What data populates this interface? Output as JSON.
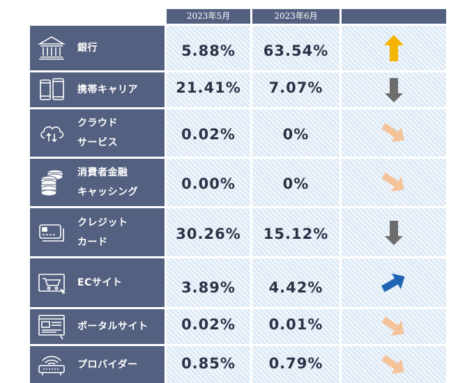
{
  "header": {
    "col1": "2023年5月",
    "col2": "2023年6月"
  },
  "rows": [
    {
      "icon": "bank-icon",
      "label_lines": [
        "銀行"
      ],
      "may": "5.88%",
      "june": "63.54%",
      "trend": "up",
      "trend_icon": "arrow-up-icon",
      "trend_color": "#f5b400"
    },
    {
      "icon": "mobile-phones-icon",
      "label_lines": [
        "携帯キャリア"
      ],
      "may": "21.41%",
      "june": "7.07%",
      "trend": "down",
      "trend_icon": "arrow-down-icon",
      "trend_color": "#6d6d6d"
    },
    {
      "icon": "cloud-service-icon",
      "label_lines": [
        "クラウド",
        "サービス"
      ],
      "may": "0.02%",
      "june": "0%",
      "trend": "slight-down",
      "trend_icon": "arrow-down-right-icon",
      "trend_color": "#f4c39a"
    },
    {
      "icon": "coins-icon",
      "label_lines": [
        "消費者金融",
        "キャッシング"
      ],
      "may": "0.00%",
      "june": "0%",
      "trend": "slight-down",
      "trend_icon": "arrow-down-right-icon",
      "trend_color": "#f4c39a"
    },
    {
      "icon": "credit-card-icon",
      "label_lines": [
        "クレジット",
        "カード"
      ],
      "may": "30.26%",
      "june": "15.12%",
      "trend": "down",
      "trend_icon": "arrow-down-icon",
      "trend_color": "#6d6d6d"
    },
    {
      "icon": "shopping-cart-icon",
      "label_lines": [
        "ECサイト"
      ],
      "may": "3.89%",
      "june": "4.42%",
      "trend": "slight-up",
      "trend_icon": "arrow-up-right-icon",
      "trend_color": "#1f63b5"
    },
    {
      "icon": "portal-site-icon",
      "label_lines": [
        "ポータルサイト"
      ],
      "may": "0.02%",
      "june": "0.01%",
      "trend": "slight-down",
      "trend_icon": "arrow-down-right-icon",
      "trend_color": "#f4c39a"
    },
    {
      "icon": "router-icon",
      "label_lines": [
        "プロバイダー"
      ],
      "may": "0.85%",
      "june": "0.79%",
      "trend": "slight-down",
      "trend_icon": "arrow-down-right-icon",
      "trend_color": "#f4c39a"
    }
  ]
}
